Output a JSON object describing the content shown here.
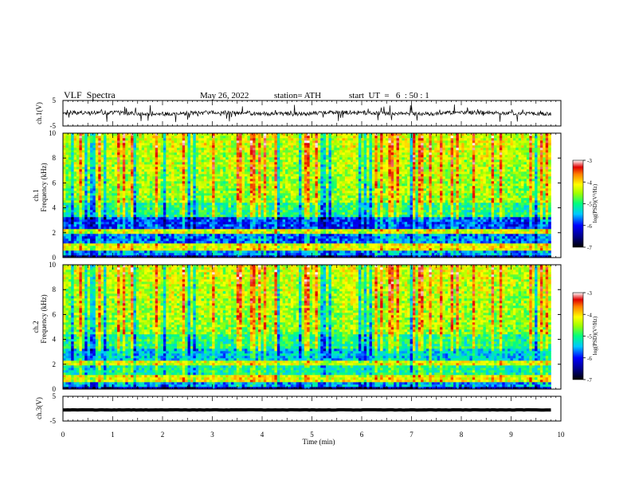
{
  "header": {
    "title": "VLF  Spectra",
    "date": "May 26, 2022",
    "station": "station= ATH",
    "start": "start  UT  =   6  : 50 : 1"
  },
  "chart_data": [
    {
      "type": "line",
      "name": "ch1-waveform",
      "ylabel": "ch.1(V)",
      "ylim": [
        -5,
        5
      ],
      "yticks": [
        "5",
        "-5"
      ],
      "xlim": [
        0,
        10
      ]
    },
    {
      "type": "heatmap",
      "name": "ch1-spectrogram",
      "ylabel": "ch.1",
      "ylabel2": "Frequency  (kHz)",
      "ylim": [
        0,
        10
      ],
      "yticks": [
        "0",
        "2",
        "4",
        "6",
        "8",
        "10"
      ],
      "xlim": [
        0,
        10
      ],
      "data_end_min": 9.8,
      "colorbar": {
        "label": "log(PSD)(V²/Hz)",
        "ticks": [
          "-3",
          "-4",
          "-5",
          "-6",
          "-7"
        ],
        "range": [
          -7,
          -3
        ]
      }
    },
    {
      "type": "heatmap",
      "name": "ch2-spectrogram",
      "ylabel": "ch.2",
      "ylabel2": "Frequency  (kHz)",
      "ylim": [
        0,
        10
      ],
      "yticks": [
        "0",
        "2",
        "4",
        "6",
        "8",
        "10"
      ],
      "xlim": [
        0,
        10
      ],
      "data_end_min": 9.8,
      "colorbar": {
        "label": "log(PSD)(V²/Hz)",
        "ticks": [
          "-3",
          "-4",
          "-5",
          "-6",
          "-7"
        ],
        "range": [
          -7,
          -3
        ]
      }
    },
    {
      "type": "line",
      "name": "ch3-waveform",
      "ylabel": "ch.3(V)",
      "ylim": [
        -5,
        5
      ],
      "yticks": [
        "5",
        "-5"
      ],
      "xlim": [
        0,
        10
      ],
      "xlabel": "Time  (min)",
      "xticks": [
        "0",
        "1",
        "2",
        "3",
        "4",
        "5",
        "6",
        "7",
        "8",
        "9",
        "10"
      ]
    }
  ],
  "colors": {
    "axis": "#000000",
    "background": "#ffffff"
  }
}
